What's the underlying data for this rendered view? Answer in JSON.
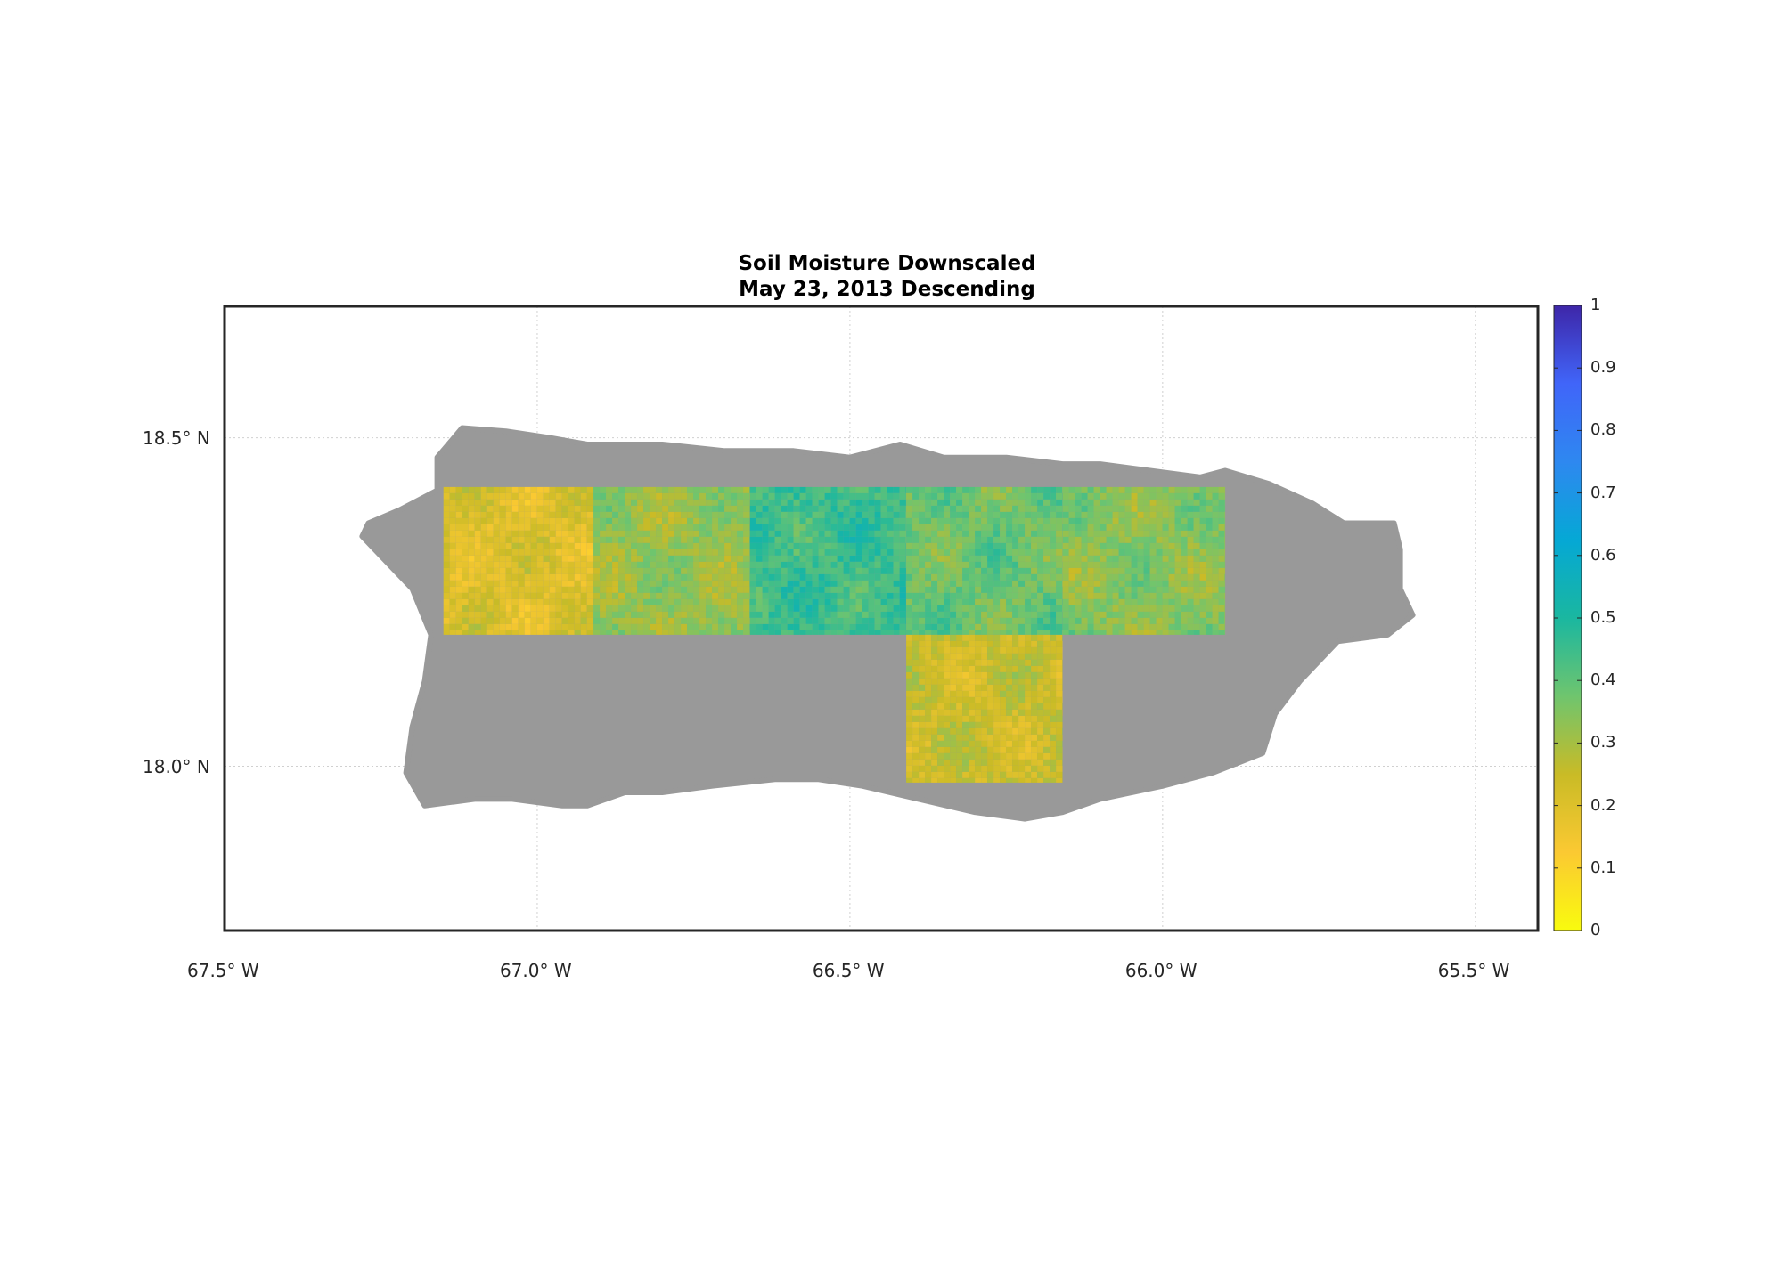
{
  "figure": {
    "title": "Soil Moisture Downscaled",
    "subtitle": "May 23, 2013 Descending"
  },
  "map": {
    "projection": "lat-lon",
    "lon_range": [
      -67.5,
      -65.4
    ],
    "lat_range": [
      17.75,
      18.7
    ],
    "land_color": "#999999",
    "grid": true,
    "lon_ticks": [
      {
        "value": -67.5,
        "label": "67.5° W"
      },
      {
        "value": -67.0,
        "label": "67.0° W"
      },
      {
        "value": -66.5,
        "label": "66.5° W"
      },
      {
        "value": -66.0,
        "label": "66.0° W"
      },
      {
        "value": -65.5,
        "label": "65.5° W"
      }
    ],
    "lat_ticks": [
      {
        "value": 18.5,
        "label": "18.5° N"
      },
      {
        "value": 18.0,
        "label": "18.0° N"
      }
    ],
    "data_tiles": [
      {
        "lon": [
          -67.15,
          -66.91
        ],
        "lat": [
          18.2,
          18.425
        ],
        "mean": 0.2
      },
      {
        "lon": [
          -66.91,
          -66.66
        ],
        "lat": [
          18.2,
          18.425
        ],
        "mean": 0.32
      },
      {
        "lon": [
          -66.66,
          -66.41
        ],
        "lat": [
          18.2,
          18.425
        ],
        "mean": 0.45
      },
      {
        "lon": [
          -66.41,
          -66.16
        ],
        "lat": [
          18.2,
          18.425
        ],
        "mean": 0.38
      },
      {
        "lon": [
          -66.16,
          -65.9
        ],
        "lat": [
          18.2,
          18.425
        ],
        "mean": 0.34
      },
      {
        "lon": [
          -66.41,
          -66.16
        ],
        "lat": [
          17.975,
          18.2
        ],
        "mean": 0.24
      }
    ]
  },
  "colorbar": {
    "range": [
      0,
      1
    ],
    "ticks": [
      "0",
      "0.1",
      "0.2",
      "0.3",
      "0.4",
      "0.5",
      "0.6",
      "0.7",
      "0.8",
      "0.9",
      "1"
    ],
    "colormap": "parula-reversed",
    "colors": [
      "#f9fb0e",
      "#fbc932",
      "#c9bb26",
      "#6fc56e",
      "#1ab7a0",
      "#05a8d5",
      "#2e88f0",
      "#4065f9",
      "#3e26a8"
    ]
  }
}
